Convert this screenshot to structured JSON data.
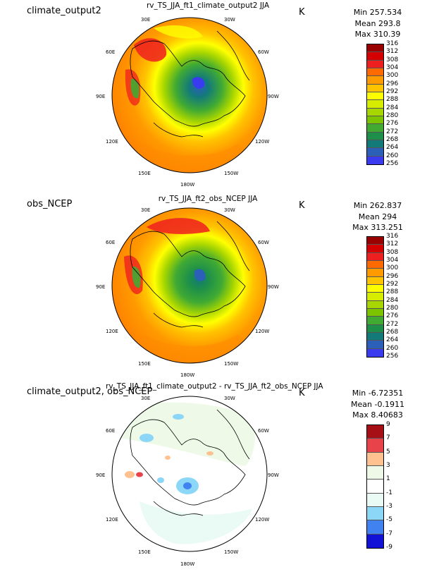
{
  "panels": [
    {
      "case_name": "climate_output2",
      "title": "rv_TS_JJA_ft1_climate_output2  JJA",
      "units": "K",
      "stats": {
        "min": "Min 257.534",
        "mean": "Mean 293.8",
        "max": "Max 310.39"
      },
      "colorbar": {
        "labels": [
          "316",
          "312",
          "308",
          "304",
          "300",
          "296",
          "292",
          "288",
          "284",
          "280",
          "276",
          "272",
          "268",
          "264",
          "260",
          "256"
        ],
        "colors": [
          "#990000",
          "#d40000",
          "#ee1f1f",
          "#ff6a00",
          "#ff9a00",
          "#ffc400",
          "#ffff00",
          "#d6ec00",
          "#a8d600",
          "#7cc400",
          "#40aa33",
          "#1d8f4a",
          "#137a7a",
          "#2b5fb8",
          "#3a3aee",
          "#8e1ef2"
        ]
      }
    },
    {
      "case_name": "obs_NCEP",
      "title": "rv_TS_JJA_ft2_obs_NCEP  JJA",
      "units": "K",
      "stats": {
        "min": "Min 262.837",
        "mean": "Mean 294",
        "max": "Max 313.251"
      },
      "colorbar": {
        "labels": [
          "316",
          "312",
          "308",
          "304",
          "300",
          "296",
          "292",
          "288",
          "284",
          "280",
          "276",
          "272",
          "268",
          "264",
          "260",
          "256"
        ],
        "colors": [
          "#990000",
          "#d40000",
          "#ee1f1f",
          "#ff6a00",
          "#ff9a00",
          "#ffc400",
          "#ffff00",
          "#d6ec00",
          "#a8d600",
          "#7cc400",
          "#40aa33",
          "#1d8f4a",
          "#137a7a",
          "#2b5fb8",
          "#3a3aee",
          "#8e1ef2"
        ]
      }
    },
    {
      "case_name": "climate_output2, obs_NCEP",
      "title": "rv_TS_JJA_ft1_climate_output2 - rv_TS_JJA_ft2_obs_NCEP  JJA",
      "units": "K",
      "stats": {
        "min": "Min -6.72351",
        "mean": "Mean -0.1911",
        "max": "Max 8.40683"
      },
      "colorbar": {
        "labels": [
          "9",
          "7",
          "5",
          "3",
          "1",
          "-1",
          "-3",
          "-5",
          "-7",
          "-9"
        ],
        "colors": [
          "#a50f15",
          "#e8434a",
          "#ffc190",
          "#eef9e8",
          "#ffffff",
          "#eafaf5",
          "#8cd6f7",
          "#3f82f0",
          "#1212d6"
        ]
      }
    }
  ],
  "map_labels": {
    "lon_30E": "30E",
    "lon_30W": "30W",
    "lon_60E": "60E",
    "lon_60W": "60W",
    "lon_90E": "90E",
    "lon_90W": "90W",
    "lon_120E": "120E",
    "lon_120W": "120W",
    "lon_150E": "150E",
    "lon_150W": "150W",
    "lon_180W": "180W"
  }
}
